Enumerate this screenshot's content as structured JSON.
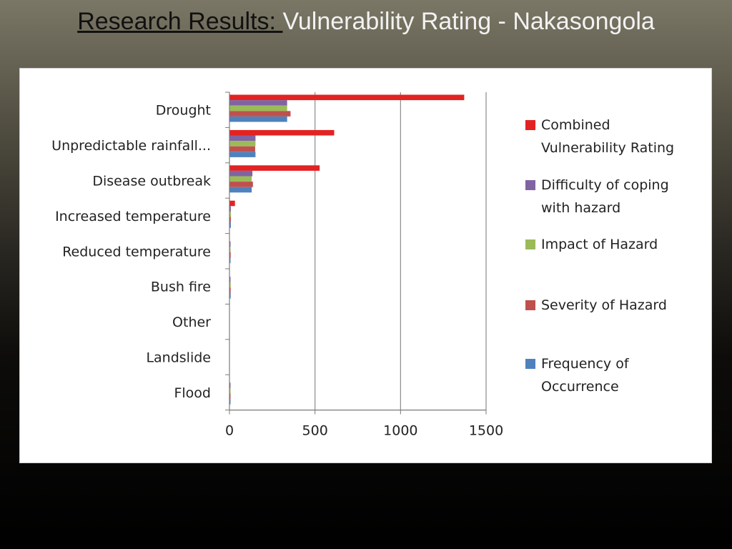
{
  "slide": {
    "title_lead": "Research Results: ",
    "title_rest": "Vulnerability Rating - Nakasongola"
  },
  "chart_data": {
    "type": "bar",
    "orientation": "horizontal",
    "categories": [
      "Drought",
      "Unpredictable rainfall...",
      "Disease outbreak",
      "Increased temperature",
      "Reduced temperature",
      "Bush fire",
      "Other",
      "Landslide",
      "Flood"
    ],
    "series": [
      {
        "name": "Combined Vulnerability Rating",
        "color": "#e32222",
        "values": [
          1370,
          610,
          525,
          30,
          0,
          0,
          0,
          0,
          0
        ]
      },
      {
        "name": "Difficulty of coping with hazard",
        "color": "#8064a2",
        "values": [
          335,
          150,
          132,
          6,
          4,
          4,
          0,
          0,
          3
        ]
      },
      {
        "name": "Impact of Hazard",
        "color": "#9bbb59",
        "values": [
          335,
          150,
          128,
          6,
          4,
          5,
          0,
          0,
          3
        ]
      },
      {
        "name": "Severity of Hazard",
        "color": "#c0504d",
        "values": [
          355,
          148,
          135,
          6,
          5,
          5,
          0,
          0,
          4
        ]
      },
      {
        "name": "Frequency of Occurrence",
        "color": "#4f81bd",
        "values": [
          335,
          150,
          128,
          6,
          4,
          5,
          0,
          0,
          4
        ]
      }
    ],
    "legend": {
      "position": "right",
      "lines": [
        [
          "Combined",
          "Vulnerability Rating"
        ],
        [
          "Difficulty of coping",
          "with hazard"
        ],
        [
          "Impact of Hazard"
        ],
        [
          "Severity of Hazard"
        ],
        [
          "Frequency of",
          "Occurrence"
        ]
      ]
    },
    "xlim": [
      0,
      1500
    ],
    "xticks": [
      "0",
      "500",
      "1000",
      "1500"
    ],
    "grid": "vertical"
  }
}
